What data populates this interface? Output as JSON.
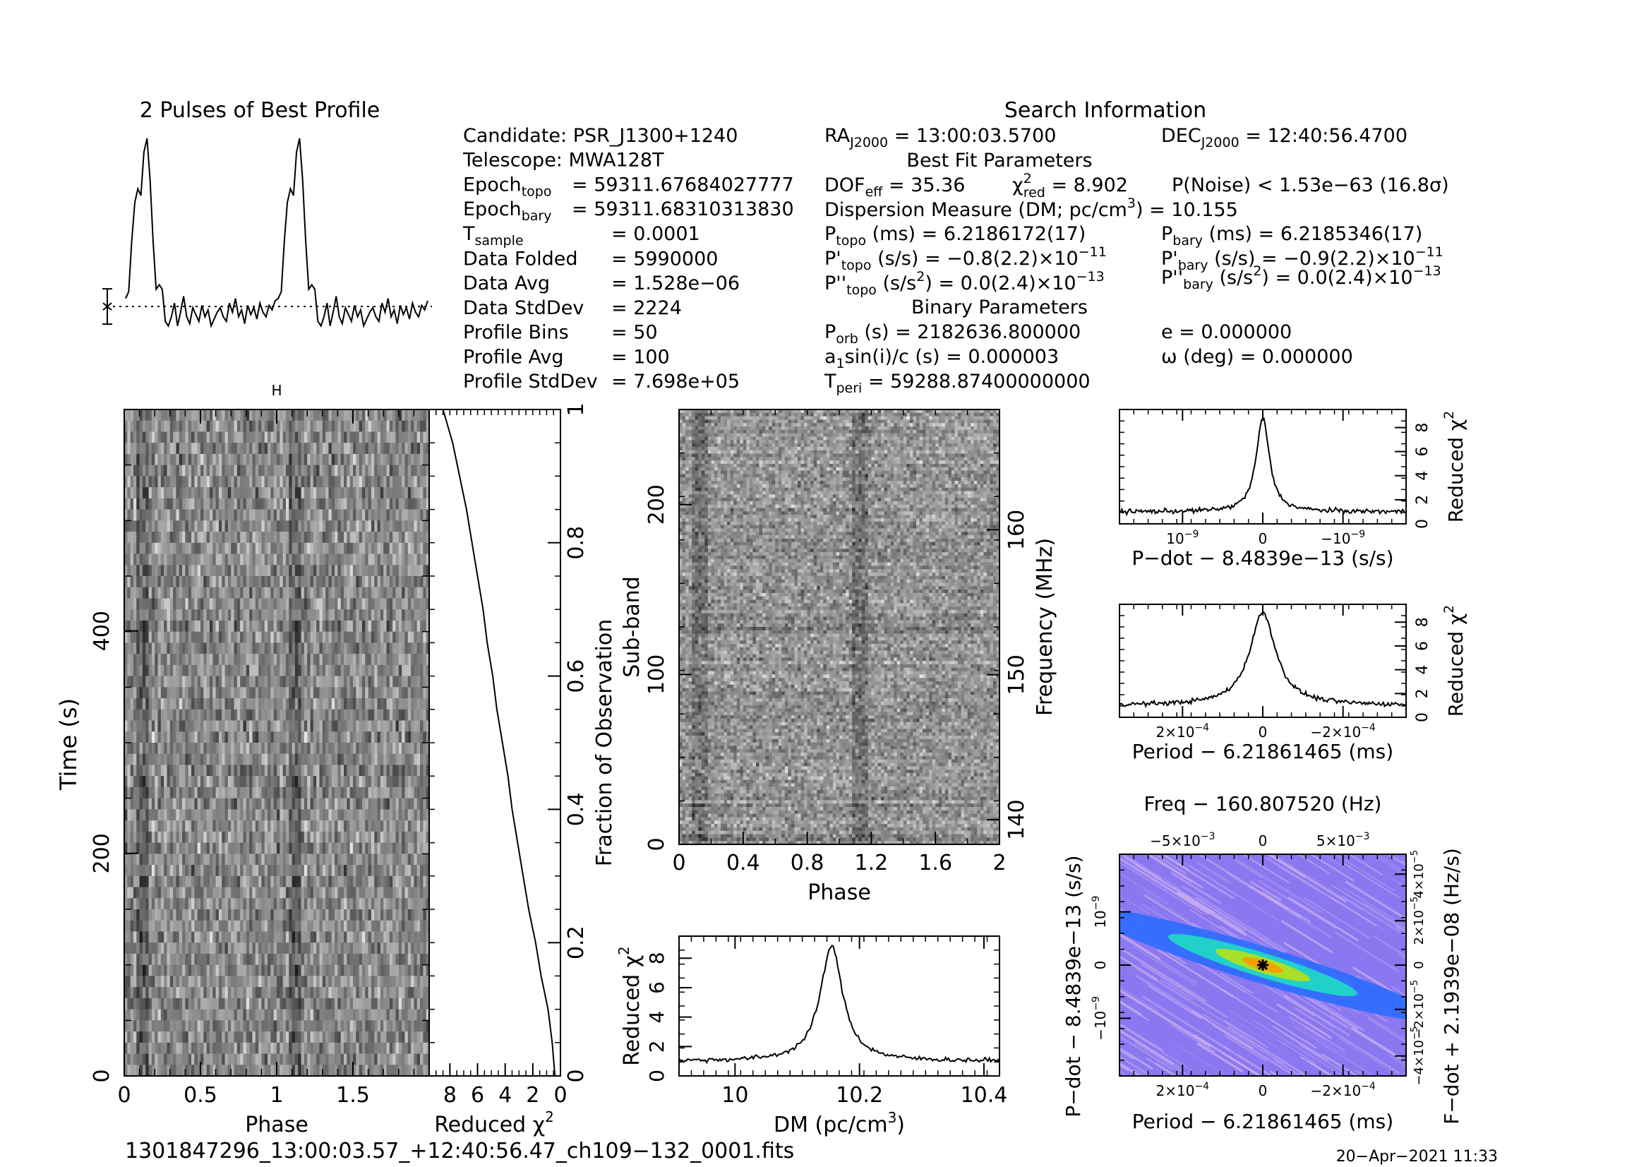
{
  "header": {
    "profile_title": "2 Pulses of Best Profile",
    "search_title": "Search Information",
    "best_fit_title": "Best Fit Parameters",
    "binary_title": "Binary Parameters"
  },
  "left_info": [
    {
      "label": "Candidate:  PSR_J1300+1240",
      "value": ""
    },
    {
      "label": "Telescope:  MWA128T",
      "value": ""
    },
    {
      "label": "Epoch",
      "sub": "topo",
      "value": "= 59311.67684027777"
    },
    {
      "label": "Epoch",
      "sub": "bary",
      "value": "= 59311.68310313830"
    },
    {
      "label": "T",
      "sub": "sample",
      "value": "=  0.0001"
    },
    {
      "label": "Data Folded",
      "value": "=  5990000"
    },
    {
      "label": "Data Avg",
      "value": "=  1.528e−06"
    },
    {
      "label": "Data StdDev",
      "value": "=  2224"
    },
    {
      "label": "Profile Bins",
      "value": "=  50"
    },
    {
      "label": "Profile Avg",
      "value": "=  100"
    },
    {
      "label": "Profile StdDev",
      "value": "=  7.698e+05"
    }
  ],
  "search_info": {
    "ra_label": "RA",
    "ra_sub": "J2000",
    "ra_value": " = 13:00:03.5700",
    "dec_label": "DEC",
    "dec_sub": "J2000",
    "dec_value": " = 12:40:56.4700",
    "dof": "DOF",
    "dof_sub": "eff",
    "dof_value": " = 35.36",
    "chi": "χ",
    "chi_sup": "2",
    "chi_sub": "red",
    "chi_value": " = 8.902",
    "pnoise": "P(Noise) < 1.53e−63   (16.8σ)",
    "dm_line": "Dispersion Measure (DM; pc/cm",
    "dm_sup": "3",
    "dm_value": ") = 10.155",
    "ptopo": "P",
    "ptopo_sub": "topo",
    "ptopo_value": " (ms) =  6.2186172(17)",
    "pbary": "P",
    "pbary_sub": "bary",
    "pbary_value": " (ms) =  6.2185346(17)",
    "pdtopo": "P'",
    "pdtopo_sub": "topo",
    "pdtopo_value": " (s/s) = −0.8(2.2)×10",
    "pdtopo_exp": "−11",
    "pdbary": "P'",
    "pdbary_sub": "bary",
    "pdbary_value": " (s/s) = −0.9(2.2)×10",
    "pdbary_exp": "−11",
    "pddtopo": "P''",
    "pddtopo_sub": "topo",
    "pddtopo_value": " (s/s",
    "pddtopo_sup": "2",
    "pddtopo_value2": ") = 0.0(2.4)×10",
    "pddtopo_exp": "−13",
    "pddbary": "P''",
    "pddbary_sub": "bary",
    "pddbary_value": " (s/s",
    "pddbary_sup": "2",
    "pddbary_value2": ") = 0.0(2.4)×10",
    "pddbary_exp": "−13",
    "porb": "P",
    "porb_sub": "orb",
    "porb_value": " (s) = 2182636.800000",
    "ecc": "e = 0.000000",
    "asini_a": "a",
    "asini_sub": "1",
    "asini_value": "sin(i)/c (s) = 0.000003",
    "omega": "ω (deg) = 0.000000",
    "tperi": "T",
    "tperi_sub": "peri",
    "tperi_value": " = 59288.87400000000"
  },
  "footer": {
    "filename": "1301847296_13:00:03.57_+12:40:56.47_ch109−132_0001.fits",
    "date": "20−Apr−2021 11:33"
  },
  "colors": {
    "line": "#000000",
    "grey_low": "#1e1e1e",
    "grey_high": "#f5f5f5",
    "pp_background": "#8a78f0",
    "pp_streak": "#d6b8f2",
    "pp_core_1": "#2a6bff",
    "pp_core_2": "#21d6c6",
    "pp_core_3": "#b0e020",
    "pp_core_4": "#f5a000"
  },
  "chart_data": [
    {
      "id": "profile",
      "type": "line",
      "title": "2 Pulses of Best Profile",
      "x": "phase, two pulses of 50 bins",
      "pulse_peak_phase": 0.11,
      "y_relative_note": "normalized profile, dotted line is profile average",
      "pulse_shape": [
        0.3,
        0.33,
        0.55,
        0.72,
        0.78,
        0.75,
        0.94,
        1.0,
        0.82,
        0.55,
        0.34,
        0.36,
        0.34,
        0.2,
        0.18,
        0.22,
        0.28,
        0.18,
        0.24,
        0.31,
        0.22,
        0.19,
        0.26,
        0.23,
        0.2,
        0.27,
        0.22,
        0.25,
        0.18,
        0.21,
        0.24,
        0.26,
        0.22,
        0.2,
        0.28,
        0.24,
        0.3,
        0.22,
        0.25,
        0.19,
        0.27,
        0.23,
        0.26,
        0.21,
        0.28,
        0.24,
        0.22,
        0.27,
        0.25,
        0.29
      ]
    },
    {
      "id": "time_phase",
      "type": "heatmap",
      "xlabel": "Phase",
      "ylabel": "Time (s)",
      "x_ticks": [
        "0",
        "0.5",
        "1",
        "1.5"
      ],
      "y_ticks": [
        "0",
        "200",
        "400"
      ],
      "xlim": [
        0,
        2
      ],
      "ylim": [
        0,
        599
      ],
      "n_rows": 60,
      "n_bins": 50,
      "pulse_phase": 0.11,
      "top_marker": "H"
    },
    {
      "id": "chi_vs_time",
      "type": "line",
      "xlabel": "Reduced χ",
      "xlabel_sup": "2",
      "ylabel": "Fraction of Observation",
      "x_ticks": [
        "8",
        "6",
        "4",
        "2",
        "0"
      ],
      "xlim": [
        9.5,
        0
      ],
      "y_ticks": [
        "0",
        "0.2",
        "0.4",
        "0.6",
        "0.8",
        "1"
      ],
      "ylim": [
        0,
        1
      ],
      "fraction": [
        0.0,
        0.05,
        0.1,
        0.15,
        0.2,
        0.25,
        0.3,
        0.35,
        0.4,
        0.45,
        0.5,
        0.55,
        0.6,
        0.65,
        0.7,
        0.75,
        0.8,
        0.85,
        0.9,
        0.95,
        1.0
      ],
      "chi2": [
        0.4,
        0.6,
        0.9,
        1.4,
        1.8,
        2.3,
        2.7,
        3.1,
        3.5,
        3.8,
        4.2,
        4.6,
        4.9,
        5.3,
        5.6,
        6.0,
        6.4,
        6.8,
        7.3,
        7.8,
        8.5
      ]
    },
    {
      "id": "subband_phase",
      "type": "heatmap",
      "xlabel": "Phase",
      "ylabel": "Sub-band",
      "y2label": "Frequency (MHz)",
      "x_ticks": [
        "0",
        "0.4",
        "0.8",
        "1.2",
        "1.6",
        "2"
      ],
      "xlim": [
        0,
        2
      ],
      "y_ticks": [
        "0",
        "100",
        "200"
      ],
      "ylim": [
        0,
        256
      ],
      "y2_ticks": [
        "140",
        "150",
        "160"
      ],
      "pulse_phase": 1.11
    },
    {
      "id": "dm_curve",
      "type": "line",
      "xlabel": "DM (pc/cm",
      "xlabel_sup": "3",
      "xlabel_end": ")",
      "ylabel": "Reduced χ",
      "ylabel_sup": "2",
      "x_ticks": [
        "10",
        "10.2",
        "10.4"
      ],
      "xlim": [
        9.91,
        10.425
      ],
      "y_ticks": [
        "0",
        "2",
        "4",
        "6",
        "8"
      ],
      "ylim": [
        0,
        9.5
      ],
      "peak_dm": 10.155,
      "peak_chi2": 8.8,
      "baseline": 1.0,
      "width": 0.022
    },
    {
      "id": "pdot_curve",
      "type": "line",
      "xlabel": "P−dot − 8.4839e−13 (s/s)",
      "ylabel": "Reduced χ",
      "ylabel_sup": "2",
      "x_ticks": [
        "10",
        "0",
        "−10"
      ],
      "x_tick_exp": [
        "−9",
        "",
        "−9"
      ],
      "y_ticks": [
        "0",
        "2",
        "4",
        "6",
        "8"
      ],
      "ylim": [
        0,
        9.5
      ],
      "peak_chi2": 8.8,
      "baseline": 1.0
    },
    {
      "id": "period_curve",
      "type": "line",
      "xlabel": "Period − 6.21861465 (ms)",
      "ylabel": "Reduced χ",
      "ylabel_sup": "2",
      "x_ticks": [
        "2×10",
        "0",
        "−2×10"
      ],
      "x_tick_exp": [
        "−4",
        "",
        "−4"
      ],
      "y_ticks": [
        "0",
        "2",
        "4",
        "6",
        "8"
      ],
      "ylim": [
        0,
        9.5
      ],
      "peak_chi2": 8.8,
      "baseline": 1.0
    },
    {
      "id": "p_pdot_plane",
      "type": "heatmap",
      "title": "Freq − 160.807520 (Hz)",
      "xlabel": "Period − 6.21861465 (ms)",
      "ylabel": "P−dot − 8.4839e−13 (s/s)",
      "y2label": "F−dot + 2.1939e−08 (Hz/s)",
      "x_ticks": [
        "2×10",
        "0",
        "−2×10"
      ],
      "x_tick_exp": [
        "−4",
        "",
        "−4"
      ],
      "top_ticks": [
        "−5×10",
        "0",
        "5×10"
      ],
      "top_tick_exp": [
        "−3",
        "",
        "−3"
      ],
      "y_ticks": [
        "10",
        "0",
        "−10"
      ],
      "y_tick_exp": [
        "−9",
        "",
        "−9"
      ],
      "y2_ticks": [
        "−4×10",
        "−2×10",
        "0",
        "2×10",
        "4×10"
      ],
      "y2_tick_exp": [
        "−5",
        "−5",
        "",
        "−5",
        "−5"
      ]
    }
  ]
}
